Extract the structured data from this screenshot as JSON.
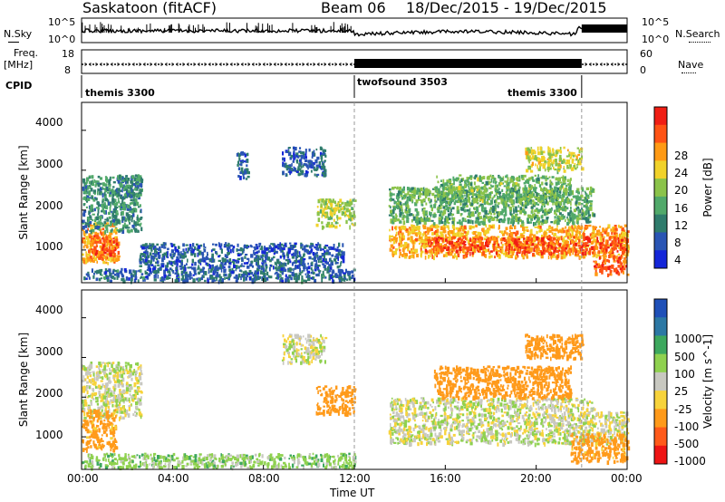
{
  "header": {
    "station": "Saskatoon (fitACF)",
    "beam": "Beam 06",
    "date_range": "18/Dec/2015 - 19/Dec/2015"
  },
  "noise_panel": {
    "left_label": "N.Sky",
    "right_label": "N.Search",
    "left_ticks": [
      "10^5",
      "10^0"
    ],
    "right_ticks": [
      "10^5",
      "10^0"
    ]
  },
  "freq_panel": {
    "left_label_1": "Freq.",
    "left_label_2": "[MHz]",
    "right_label": "Nave",
    "left_ticks": [
      "18",
      "8"
    ],
    "right_ticks": [
      "60",
      "0"
    ]
  },
  "cpid_panel": {
    "label": "CPID",
    "segments": [
      "themis 3300",
      "twofsound 3503",
      "themis 3300"
    ]
  },
  "power_colorbar": {
    "label": "Power [dB]",
    "ticks": [
      "28",
      "24",
      "20",
      "16",
      "12",
      "8",
      "4"
    ],
    "colors": [
      "#1426d8",
      "#2a55b4",
      "#2f7c6c",
      "#51a96a",
      "#8bc34a",
      "#f1d22a",
      "#ff9a14",
      "#ff5314",
      "#f01e14"
    ]
  },
  "velocity_colorbar": {
    "label": "Velocity [m s^-1]",
    "ticks": [
      "1000",
      "500",
      "100",
      "25",
      "-25",
      "-100",
      "-500",
      "-1000"
    ],
    "colors": [
      "#1f50b8",
      "#2c78a4",
      "#3da85e",
      "#8fd14f",
      "#c8c8c0",
      "#f7d33b",
      "#ff9a1a",
      "#ff5a1a",
      "#ee1414"
    ]
  },
  "axes": {
    "ylabel": "Slant Range [km]",
    "y_ticks": [
      "4000",
      "3000",
      "2000",
      "1000"
    ],
    "x_ticks": [
      "00:00",
      "04:00",
      "08:00",
      "12:00",
      "16:00",
      "20:00",
      "00:00"
    ],
    "xlabel": "Time UT"
  },
  "chart_data": [
    {
      "type": "heatmap",
      "name": "power",
      "title": "",
      "xlabel": "Time UT",
      "ylabel": "Slant Range [km]",
      "x_unit": "hours UT",
      "xlim": [
        0,
        24
      ],
      "ylim": [
        180,
        4700
      ],
      "clim": [
        0,
        32
      ],
      "blobs": [
        {
          "t0": 0.0,
          "t1": 1.5,
          "r0": 700,
          "r1": 1700,
          "v": 22
        },
        {
          "t0": 0.3,
          "t1": 1.6,
          "r0": 800,
          "r1": 1400,
          "v": 26
        },
        {
          "t0": 0.0,
          "t1": 2.6,
          "r0": 1500,
          "r1": 2900,
          "v": 10
        },
        {
          "t0": 1.5,
          "t1": 2.6,
          "r0": 2300,
          "r1": 2900,
          "v": 9
        },
        {
          "t0": 6.8,
          "t1": 7.3,
          "r0": 2800,
          "r1": 3500,
          "v": 7
        },
        {
          "t0": 8.8,
          "t1": 10.7,
          "r0": 2900,
          "r1": 3600,
          "v": 6
        },
        {
          "t0": 10.3,
          "t1": 12.0,
          "r0": 1600,
          "r1": 2300,
          "v": 17
        },
        {
          "t0": 13.5,
          "t1": 24.0,
          "r0": 850,
          "r1": 1650,
          "v": 22
        },
        {
          "t0": 15.0,
          "t1": 24.0,
          "r0": 950,
          "r1": 1350,
          "v": 27
        },
        {
          "t0": 13.5,
          "t1": 22.5,
          "r0": 1700,
          "r1": 2600,
          "v": 13
        },
        {
          "t0": 15.5,
          "t1": 21.5,
          "r0": 2200,
          "r1": 2900,
          "v": 14
        },
        {
          "t0": 19.5,
          "t1": 22.0,
          "r0": 3000,
          "r1": 3600,
          "v": 18
        },
        {
          "t0": 22.5,
          "t1": 24.0,
          "r0": 400,
          "r1": 900,
          "v": 26
        },
        {
          "t0": 0.0,
          "t1": 12.0,
          "r0": 250,
          "r1": 550,
          "v": 7
        },
        {
          "t0": 2.5,
          "t1": 11.5,
          "r0": 550,
          "r1": 1200,
          "v": 6
        }
      ]
    },
    {
      "type": "heatmap",
      "name": "velocity",
      "title": "",
      "xlabel": "Time UT",
      "ylabel": "Slant Range [km]",
      "x_unit": "hours UT",
      "xlim": [
        0,
        24
      ],
      "ylim": [
        180,
        4700
      ],
      "clim": [
        -1000,
        1000
      ],
      "blobs": [
        {
          "t0": 0.0,
          "t1": 2.6,
          "r0": 1500,
          "r1": 2900,
          "v": 0
        },
        {
          "t0": 0.0,
          "t1": 1.5,
          "r0": 700,
          "r1": 1700,
          "v": -150
        },
        {
          "t0": 10.3,
          "t1": 12.0,
          "r0": 1600,
          "r1": 2300,
          "v": -400
        },
        {
          "t0": 8.8,
          "t1": 10.7,
          "r0": 2900,
          "r1": 3600,
          "v": 0
        },
        {
          "t0": 13.5,
          "t1": 24.0,
          "r0": 850,
          "r1": 1650,
          "v": 0
        },
        {
          "t0": 13.5,
          "t1": 22.5,
          "r0": 1700,
          "r1": 2000,
          "v": 0
        },
        {
          "t0": 15.5,
          "t1": 21.5,
          "r0": 2000,
          "r1": 2800,
          "v": -400
        },
        {
          "t0": 19.5,
          "t1": 22.0,
          "r0": 3000,
          "r1": 3600,
          "v": -300
        },
        {
          "t0": 0.0,
          "t1": 12.0,
          "r0": 250,
          "r1": 600,
          "v": 60
        },
        {
          "t0": 21.5,
          "t1": 24.0,
          "r0": 400,
          "r1": 1100,
          "v": -150
        }
      ]
    }
  ]
}
